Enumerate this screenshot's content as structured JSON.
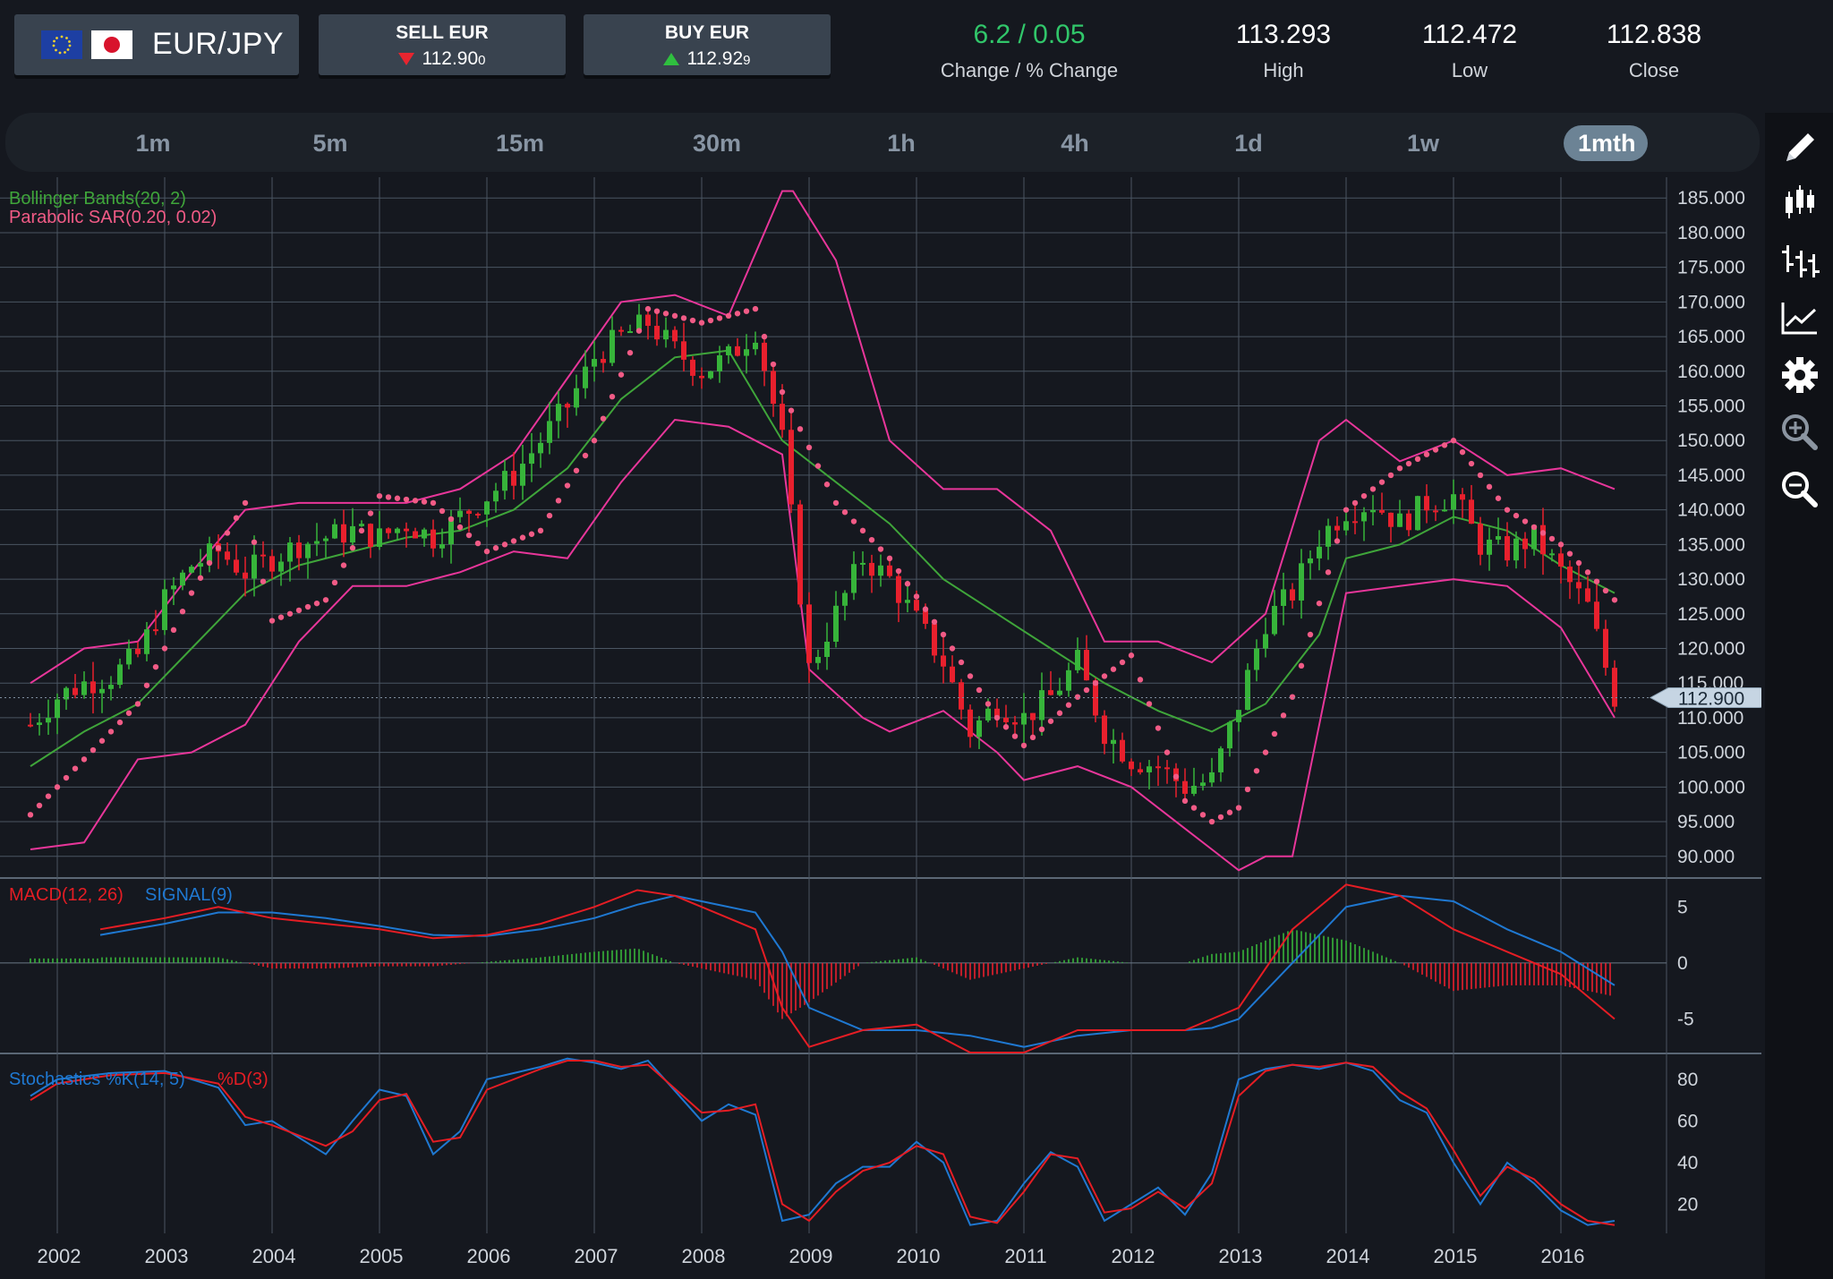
{
  "header": {
    "pair": "EUR/JPY",
    "sell_label": "SELL EUR",
    "sell_price_main": "112.90",
    "sell_price_pip": "0",
    "buy_label": "BUY EUR",
    "buy_price_main": "112.92",
    "buy_price_pip": "9",
    "change_value": "6.2 / 0.05",
    "change_label": "Change / % Change",
    "high_value": "113.293",
    "high_label": "High",
    "low_value": "112.472",
    "low_label": "Low",
    "close_value": "112.838",
    "close_label": "Close"
  },
  "colors": {
    "background": "#15181f",
    "change_green": "#31c66a",
    "up_candle": "#37b43a",
    "down_candle": "#e8202d",
    "bollinger": "#e8369a",
    "bollinger_mid": "#3fa53a",
    "sar": "#f15b86",
    "macd": "#e51d24",
    "signal": "#1f78d1",
    "grid": "#4a5562"
  },
  "timeframes": [
    "1m",
    "5m",
    "15m",
    "30m",
    "1h",
    "4h",
    "1d",
    "1w",
    "1mth"
  ],
  "active_timeframe": "1mth",
  "tools": [
    "pencil-icon",
    "candlestick-icon",
    "ohlc-bars-icon",
    "line-chart-icon",
    "gear-icon",
    "zoom-in-icon",
    "zoom-out-icon"
  ],
  "chart_data": [
    {
      "type": "candlestick",
      "title": "",
      "indicator_labels": [
        "Bollinger Bands(20, 2)",
        "Parabolic SAR(0.20, 0.02)"
      ],
      "x_ticks": [
        "2002",
        "2003",
        "2004",
        "2005",
        "2006",
        "2007",
        "2008",
        "2009",
        "2010",
        "2011",
        "2012",
        "2013",
        "2014",
        "2015",
        "2016"
      ],
      "y_ticks": [
        "185.000",
        "180.000",
        "175.000",
        "170.000",
        "165.000",
        "160.000",
        "155.000",
        "150.000",
        "145.000",
        "140.000",
        "135.000",
        "130.000",
        "125.000",
        "120.000",
        "115.000",
        "110.000",
        "105.000",
        "100.000",
        "95.000",
        "90.000"
      ],
      "ylim": [
        87,
        188
      ],
      "grid": true,
      "current_price_label": "112.900",
      "series": [
        {
          "name": "Close",
          "x": [
            2001.75,
            2002.0,
            2002.25,
            2002.5,
            2002.75,
            2003.0,
            2003.25,
            2003.5,
            2003.75,
            2004.0,
            2004.25,
            2004.5,
            2004.75,
            2005.0,
            2005.25,
            2005.5,
            2005.75,
            2006.0,
            2006.25,
            2006.5,
            2006.75,
            2007.0,
            2007.25,
            2007.5,
            2007.75,
            2008.0,
            2008.25,
            2008.5,
            2008.75,
            2009.0,
            2009.25,
            2009.5,
            2009.75,
            2010.0,
            2010.25,
            2010.5,
            2010.75,
            2011.0,
            2011.25,
            2011.5,
            2011.75,
            2012.0,
            2012.25,
            2012.5,
            2012.75,
            2013.0,
            2013.25,
            2013.5,
            2013.75,
            2014.0,
            2014.25,
            2014.5,
            2014.75,
            2015.0,
            2015.25,
            2015.5,
            2015.75,
            2016.0,
            2016.25,
            2016.5
          ],
          "values": [
            109,
            113,
            115,
            116,
            119,
            127,
            132,
            134,
            131,
            133,
            135,
            136,
            137,
            136,
            138,
            136,
            139,
            142,
            145,
            150,
            155,
            162,
            165,
            167,
            163,
            160,
            162,
            166,
            150,
            117,
            125,
            133,
            130,
            124,
            118,
            108,
            112,
            110,
            113,
            118,
            108,
            104,
            103,
            100,
            101,
            112,
            124,
            128,
            136,
            140,
            141,
            138,
            141,
            142,
            135,
            134,
            136,
            131,
            126,
            113
          ]
        },
        {
          "name": "SAR",
          "x": [
            2001.75,
            2002.25,
            2002.75,
            2003.25,
            2003.75,
            2004.0,
            2004.5,
            2005.0,
            2005.5,
            2006.0,
            2006.5,
            2007.0,
            2007.5,
            2008.0,
            2008.5,
            2008.75,
            2009.25,
            2009.75,
            2010.25,
            2010.75,
            2011.0,
            2011.5,
            2012.0,
            2012.5,
            2012.75,
            2013.0,
            2013.5,
            2014.0,
            2014.5,
            2015.0,
            2015.5,
            2016.0,
            2016.5
          ],
          "values": [
            96,
            104,
            112,
            128,
            141,
            124,
            127,
            142,
            141,
            134,
            137,
            150,
            169,
            167,
            169,
            157,
            141,
            133,
            122,
            110,
            106,
            113,
            119,
            98,
            95,
            97,
            113,
            140,
            146,
            150,
            140,
            135,
            127
          ]
        },
        {
          "name": "Bollinger upper",
          "x": [
            2001.75,
            2002.25,
            2002.75,
            2003.25,
            2003.75,
            2004.25,
            2004.75,
            2005.25,
            2005.75,
            2006.25,
            2006.75,
            2007.25,
            2007.75,
            2008.25,
            2008.75,
            2008.85,
            2009.25,
            2009.75,
            2010.25,
            2010.75,
            2011.25,
            2011.75,
            2012.25,
            2012.75,
            2013.25,
            2013.75,
            2014.0,
            2014.5,
            2015.0,
            2015.5,
            2016.0,
            2016.5
          ],
          "values": [
            115,
            120,
            121,
            131,
            140,
            141,
            141,
            141,
            143,
            148,
            159,
            170,
            171,
            168,
            186,
            186,
            176,
            150,
            143,
            143,
            137,
            121,
            121,
            118,
            125,
            150,
            153,
            147,
            150,
            145,
            146,
            143
          ]
        },
        {
          "name": "Bollinger middle",
          "x": [
            2001.75,
            2002.25,
            2002.75,
            2003.25,
            2003.75,
            2004.25,
            2004.75,
            2005.25,
            2005.75,
            2006.25,
            2006.75,
            2007.25,
            2007.75,
            2008.25,
            2008.75,
            2009.25,
            2009.75,
            2010.25,
            2010.75,
            2011.25,
            2011.75,
            2012.25,
            2012.75,
            2013.25,
            2013.75,
            2014.0,
            2014.5,
            2015.0,
            2015.5,
            2016.0,
            2016.5
          ],
          "values": [
            103,
            108,
            112,
            120,
            128,
            132,
            134,
            136,
            137,
            140,
            146,
            156,
            162,
            163,
            150,
            144,
            138,
            130,
            125,
            120,
            115,
            111,
            108,
            112,
            122,
            133,
            135,
            139,
            137,
            132,
            128
          ]
        },
        {
          "name": "Bollinger lower",
          "x": [
            2001.75,
            2002.25,
            2002.75,
            2003.25,
            2003.75,
            2004.25,
            2004.75,
            2005.25,
            2005.75,
            2006.25,
            2006.75,
            2007.25,
            2007.75,
            2008.25,
            2008.5,
            2008.75,
            2009.0,
            2009.5,
            2009.75,
            2010.25,
            2010.75,
            2011.0,
            2011.5,
            2012.0,
            2012.5,
            2012.75,
            2013.0,
            2013.25,
            2013.5,
            2013.75,
            2014.0,
            2014.5,
            2015.0,
            2015.5,
            2016.0,
            2016.5
          ],
          "values": [
            91,
            92,
            104,
            105,
            109,
            121,
            129,
            129,
            131,
            134,
            133,
            144,
            153,
            152,
            150,
            148,
            117,
            110,
            108,
            111,
            105,
            101,
            103,
            100,
            94,
            91,
            88,
            90,
            90,
            109,
            128,
            129,
            130,
            129,
            123,
            110
          ]
        }
      ]
    },
    {
      "type": "line",
      "indicator_labels": [
        "MACD(12, 26)",
        "SIGNAL(9)"
      ],
      "y_ticks": [
        "5",
        "0",
        "-5"
      ],
      "ylim": [
        -8,
        7.5
      ],
      "series": [
        {
          "name": "MACD(12, 26)",
          "x": [
            2002.4,
            2003.0,
            2003.5,
            2004.0,
            2004.5,
            2005.0,
            2005.5,
            2006.0,
            2006.5,
            2007.0,
            2007.4,
            2007.75,
            2008.0,
            2008.5,
            2008.75,
            2009.0,
            2009.5,
            2010.0,
            2010.5,
            2011.0,
            2011.5,
            2012.0,
            2012.5,
            2012.75,
            2013.0,
            2013.5,
            2014.0,
            2014.5,
            2015.0,
            2015.5,
            2016.0,
            2016.5
          ],
          "values": [
            3,
            4,
            5,
            4,
            3.5,
            3,
            2.2,
            2.5,
            3.5,
            5,
            6.5,
            6,
            5,
            3,
            -4,
            -7.5,
            -6,
            -5.5,
            -8,
            -8,
            -6,
            -6,
            -6,
            -5,
            -4,
            3,
            7,
            6,
            3,
            1,
            -1,
            -5
          ]
        },
        {
          "name": "SIGNAL(9)",
          "x": [
            2002.4,
            2003.0,
            2003.5,
            2004.0,
            2004.5,
            2005.0,
            2005.5,
            2006.0,
            2006.5,
            2007.0,
            2007.4,
            2007.75,
            2008.0,
            2008.5,
            2008.75,
            2009.0,
            2009.5,
            2010.0,
            2010.5,
            2011.0,
            2011.5,
            2012.0,
            2012.5,
            2012.75,
            2013.0,
            2013.5,
            2014.0,
            2014.5,
            2015.0,
            2015.5,
            2016.0,
            2016.5
          ],
          "values": [
            2.5,
            3.5,
            4.5,
            4.5,
            4,
            3.3,
            2.5,
            2.4,
            3,
            4,
            5.2,
            6,
            5.5,
            4.5,
            1,
            -4,
            -6,
            -6,
            -6.5,
            -7.5,
            -6.5,
            -6,
            -6,
            -5.8,
            -5,
            0,
            5,
            6,
            5.5,
            3,
            1,
            -2
          ]
        },
        {
          "name": "Histogram",
          "x": [
            2002.4,
            2003.0,
            2003.5,
            2004.0,
            2004.5,
            2005.0,
            2005.5,
            2006.0,
            2006.5,
            2007.0,
            2007.4,
            2007.75,
            2008.0,
            2008.5,
            2008.75,
            2009.0,
            2009.5,
            2010.0,
            2010.5,
            2011.0,
            2011.5,
            2012.0,
            2012.5,
            2012.75,
            2013.0,
            2013.5,
            2014.0,
            2014.5,
            2015.0,
            2015.5,
            2016.0,
            2016.5
          ],
          "values": [
            0.5,
            0.5,
            0.5,
            -0.5,
            -0.5,
            -0.3,
            -0.3,
            0.1,
            0.5,
            1,
            1.3,
            0,
            -0.5,
            -1.5,
            -5,
            -3.5,
            0,
            0.5,
            -1.5,
            -0.5,
            0.5,
            0,
            0,
            0.8,
            1,
            3,
            2,
            0,
            -2.5,
            -2,
            -2,
            -3
          ]
        }
      ]
    },
    {
      "type": "line",
      "indicator_labels": [
        "Stochastics %K(14, 5)",
        "%D(3)"
      ],
      "y_ticks": [
        "80",
        "60",
        "40",
        "20"
      ],
      "ylim": [
        6,
        92
      ],
      "series": [
        {
          "name": "%K(14, 5)",
          "x": [
            2001.75,
            2002.0,
            2002.5,
            2003.0,
            2003.5,
            2003.75,
            2004.0,
            2004.5,
            2004.75,
            2005.0,
            2005.25,
            2005.5,
            2005.75,
            2006.0,
            2006.5,
            2006.75,
            2007.0,
            2007.25,
            2007.5,
            2008.0,
            2008.25,
            2008.5,
            2008.75,
            2009.0,
            2009.25,
            2009.5,
            2009.75,
            2010.0,
            2010.25,
            2010.5,
            2010.75,
            2011.0,
            2011.25,
            2011.5,
            2011.75,
            2012.0,
            2012.25,
            2012.5,
            2012.75,
            2013.0,
            2013.25,
            2013.5,
            2013.75,
            2014.0,
            2014.25,
            2014.5,
            2014.75,
            2015.0,
            2015.25,
            2015.5,
            2015.75,
            2016.0,
            2016.25,
            2016.5
          ],
          "values": [
            72,
            80,
            83,
            84,
            76,
            58,
            60,
            44,
            60,
            75,
            72,
            44,
            55,
            80,
            86,
            90,
            88,
            85,
            89,
            60,
            68,
            63,
            12,
            15,
            30,
            38,
            38,
            50,
            40,
            10,
            12,
            30,
            45,
            38,
            12,
            20,
            28,
            15,
            35,
            80,
            85,
            87,
            85,
            88,
            84,
            70,
            64,
            40,
            20,
            40,
            30,
            17,
            10,
            12
          ]
        },
        {
          "name": "%D(3)",
          "x": [
            2001.75,
            2002.0,
            2002.5,
            2003.0,
            2003.5,
            2003.75,
            2004.0,
            2004.5,
            2004.75,
            2005.0,
            2005.25,
            2005.5,
            2005.75,
            2006.0,
            2006.5,
            2006.75,
            2007.0,
            2007.25,
            2007.5,
            2008.0,
            2008.25,
            2008.5,
            2008.75,
            2009.0,
            2009.25,
            2009.5,
            2009.75,
            2010.0,
            2010.25,
            2010.5,
            2010.75,
            2011.0,
            2011.25,
            2011.5,
            2011.75,
            2012.0,
            2012.25,
            2012.5,
            2012.75,
            2013.0,
            2013.25,
            2013.5,
            2013.75,
            2014.0,
            2014.25,
            2014.5,
            2014.75,
            2015.0,
            2015.25,
            2015.5,
            2015.75,
            2016.0,
            2016.25,
            2016.5
          ],
          "values": [
            70,
            78,
            82,
            83,
            78,
            62,
            58,
            48,
            55,
            70,
            73,
            50,
            52,
            75,
            85,
            89,
            89,
            86,
            87,
            64,
            65,
            68,
            20,
            12,
            26,
            36,
            40,
            48,
            44,
            14,
            11,
            26,
            44,
            42,
            16,
            18,
            26,
            18,
            30,
            72,
            84,
            87,
            86,
            88,
            86,
            74,
            66,
            46,
            24,
            38,
            32,
            20,
            12,
            10
          ]
        }
      ]
    }
  ]
}
